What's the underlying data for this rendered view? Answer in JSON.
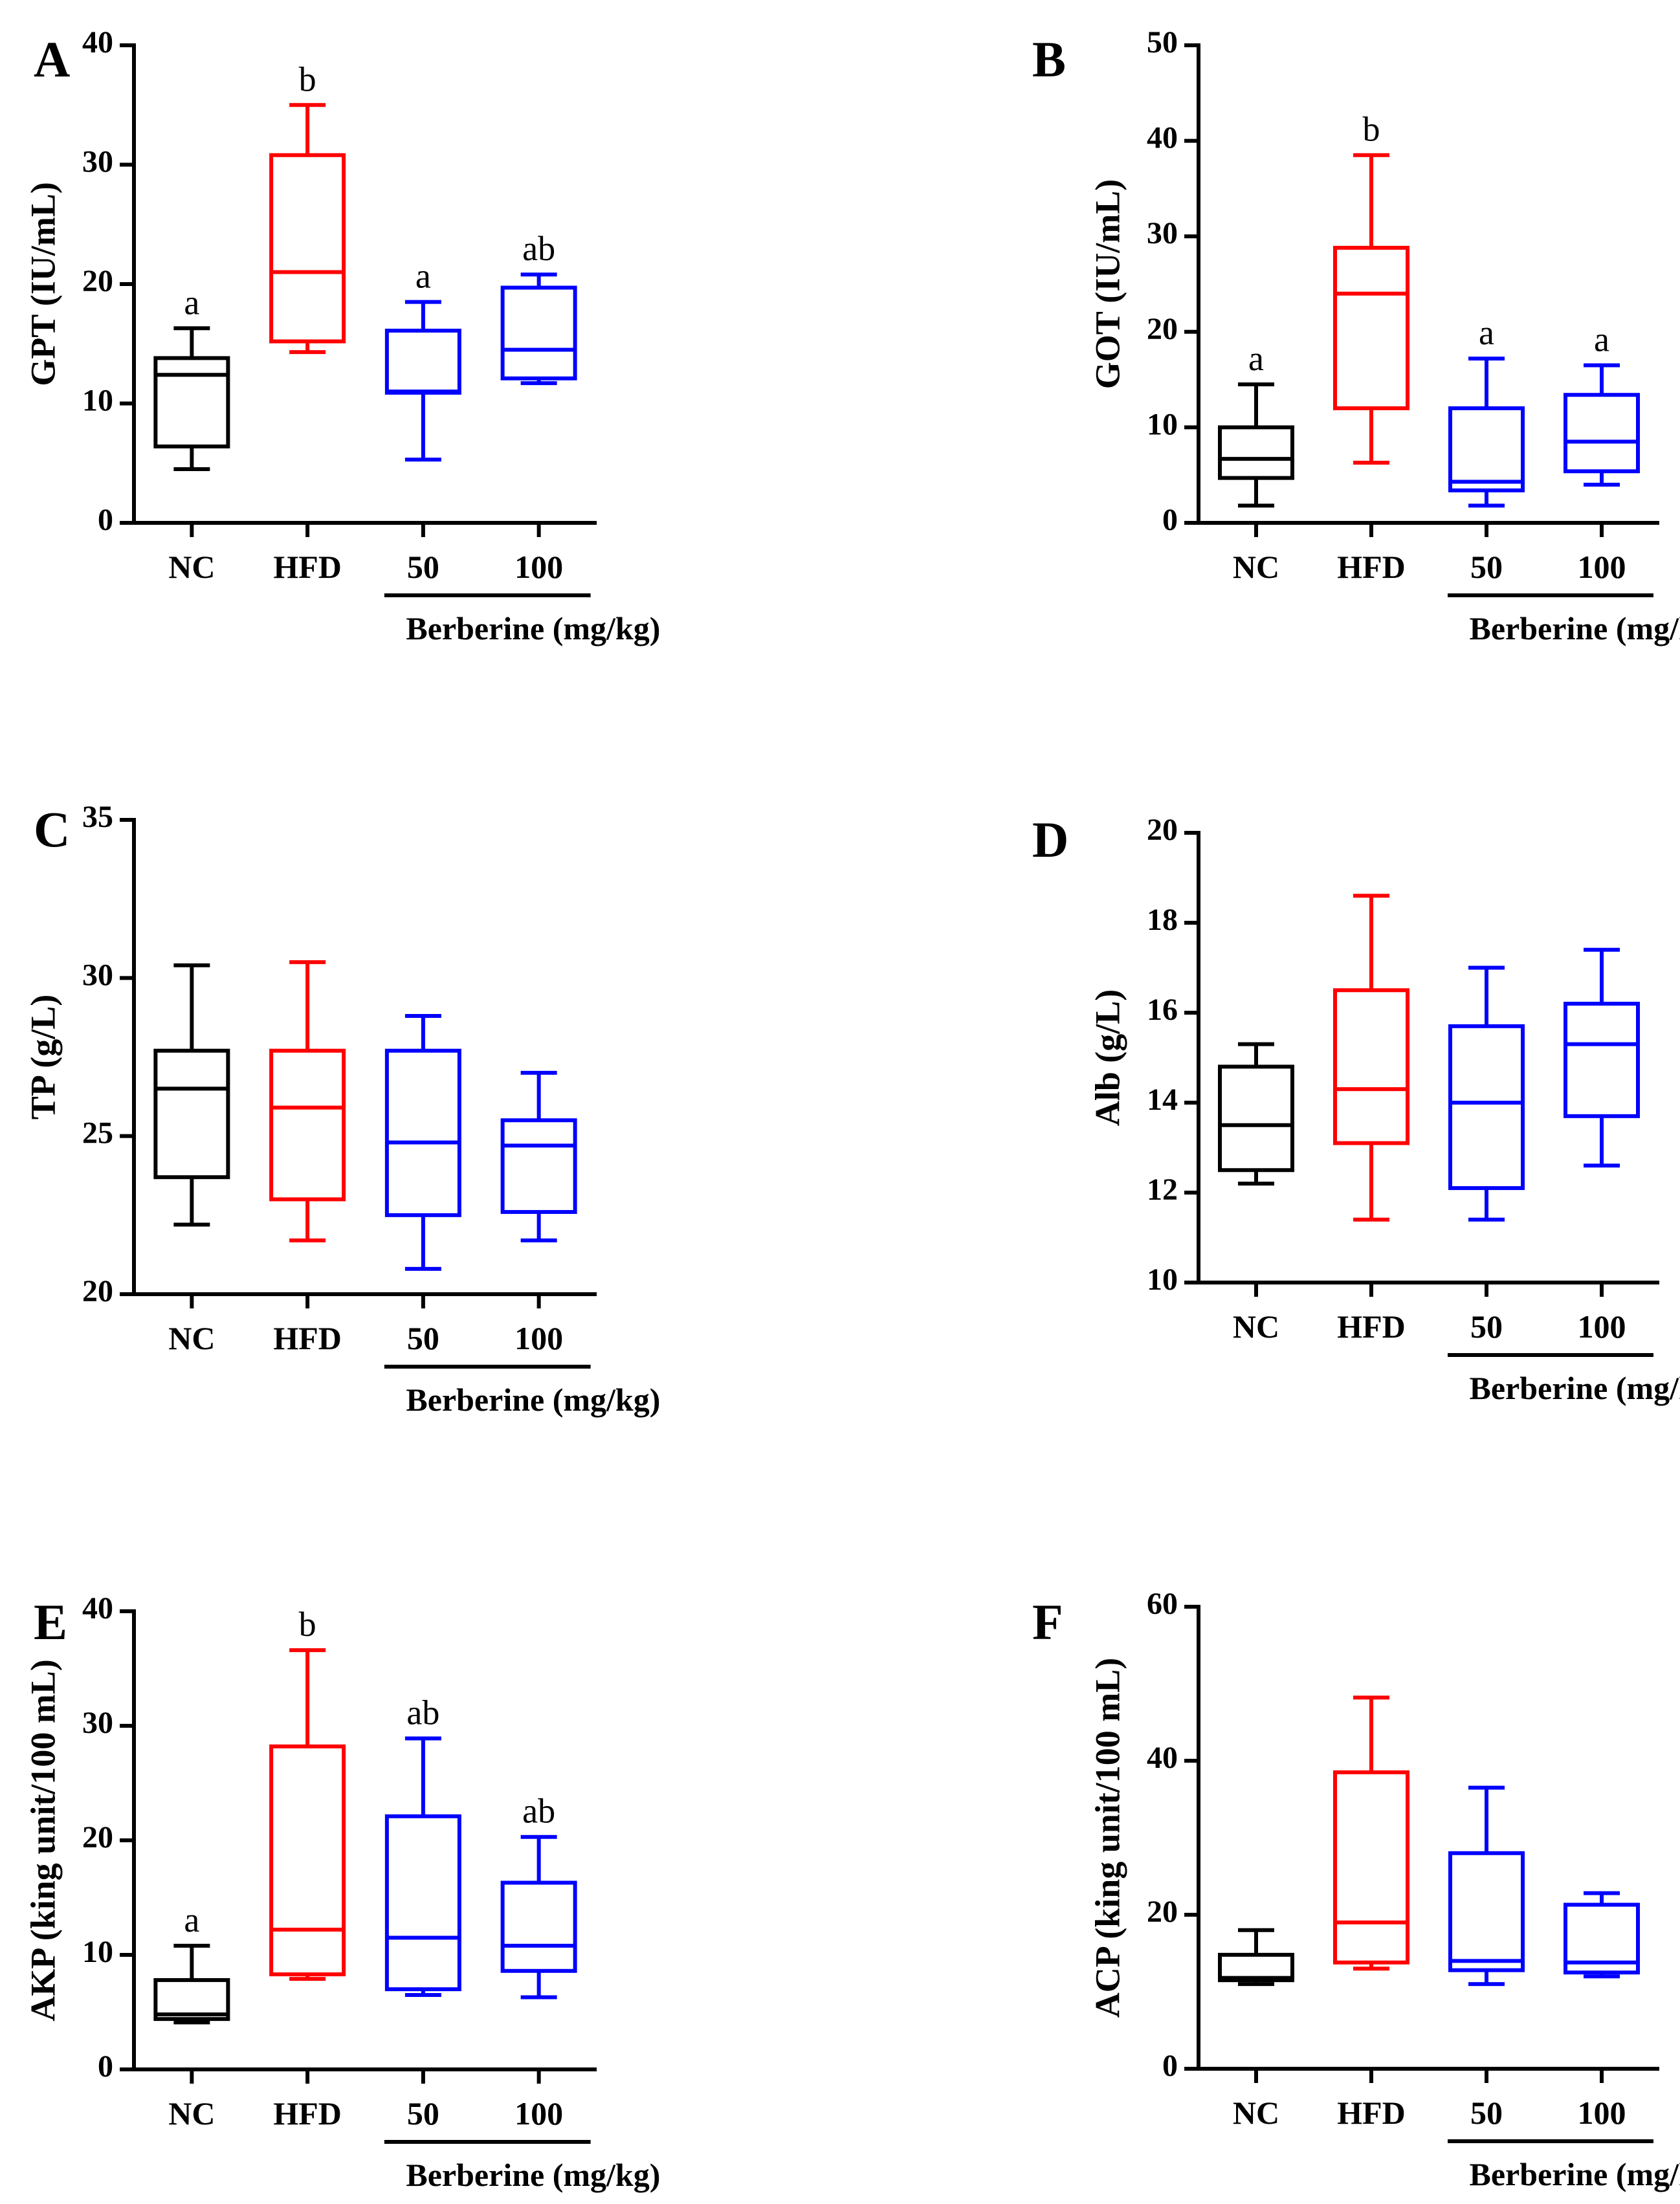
{
  "figure": {
    "group_label": "Berberine (mg/kg)",
    "colors": {
      "NC": "#000000",
      "HFD": "#ff0000",
      "treated": "#0000ff",
      "axis": "#000000"
    }
  },
  "chart_data": [
    {
      "type": "box",
      "panel": "A",
      "ylabel": "GPT (IU/mL)",
      "ylim": [
        0,
        40
      ],
      "yticks": [
        0,
        10,
        20,
        30,
        40
      ],
      "categories": [
        "NC",
        "HFD",
        "50",
        "100"
      ],
      "xgroup_label": "Berberine (mg/kg)",
      "boxes": [
        {
          "category": "NC",
          "min": 4.5,
          "q1": 6.4,
          "median": 12.4,
          "q3": 13.8,
          "max": 16.3,
          "letter": "a"
        },
        {
          "category": "HFD",
          "min": 14.3,
          "q1": 15.2,
          "median": 21.0,
          "q3": 30.8,
          "max": 35.0,
          "letter": "b"
        },
        {
          "category": "50",
          "min": 5.3,
          "q1": 10.9,
          "median": 11.0,
          "q3": 16.1,
          "max": 18.5,
          "letter": "a"
        },
        {
          "category": "100",
          "min": 11.7,
          "q1": 12.1,
          "median": 14.5,
          "q3": 19.7,
          "max": 20.8,
          "letter": "ab"
        }
      ]
    },
    {
      "type": "box",
      "panel": "B",
      "ylabel": "GOT (IU/mL)",
      "ylim": [
        0,
        50
      ],
      "yticks": [
        0,
        10,
        20,
        30,
        40,
        50
      ],
      "categories": [
        "NC",
        "HFD",
        "50",
        "100"
      ],
      "xgroup_label": "Berberine (mg/kg)",
      "boxes": [
        {
          "category": "NC",
          "min": 1.8,
          "q1": 4.7,
          "median": 6.7,
          "q3": 10.0,
          "max": 14.5,
          "letter": "a"
        },
        {
          "category": "HFD",
          "min": 6.3,
          "q1": 12.0,
          "median": 24.0,
          "q3": 28.8,
          "max": 38.5,
          "letter": "b"
        },
        {
          "category": "50",
          "min": 1.8,
          "q1": 3.4,
          "median": 4.3,
          "q3": 12.0,
          "max": 17.2,
          "letter": "a"
        },
        {
          "category": "100",
          "min": 4.0,
          "q1": 5.4,
          "median": 8.5,
          "q3": 13.4,
          "max": 16.5,
          "letter": "a"
        }
      ]
    },
    {
      "type": "box",
      "panel": "C",
      "ylabel": "TP (g/L)",
      "ylim": [
        20,
        35
      ],
      "yticks": [
        20,
        25,
        30,
        35
      ],
      "categories": [
        "NC",
        "HFD",
        "50",
        "100"
      ],
      "xgroup_label": "Berberine (mg/kg)",
      "boxes": [
        {
          "category": "NC",
          "min": 22.2,
          "q1": 23.7,
          "median": 26.5,
          "q3": 27.7,
          "max": 30.4,
          "letter": ""
        },
        {
          "category": "HFD",
          "min": 21.7,
          "q1": 23.0,
          "median": 25.9,
          "q3": 27.7,
          "max": 30.5,
          "letter": ""
        },
        {
          "category": "50",
          "min": 20.8,
          "q1": 22.5,
          "median": 24.8,
          "q3": 27.7,
          "max": 28.8,
          "letter": ""
        },
        {
          "category": "100",
          "min": 21.7,
          "q1": 22.6,
          "median": 24.7,
          "q3": 25.5,
          "max": 27.0,
          "letter": ""
        }
      ]
    },
    {
      "type": "box",
      "panel": "D",
      "ylabel": "Alb (g/L)",
      "ylim": [
        10,
        20
      ],
      "yticks": [
        10,
        12,
        14,
        16,
        18,
        20
      ],
      "categories": [
        "NC",
        "HFD",
        "50",
        "100"
      ],
      "xgroup_label": "Berberine (mg/kg)",
      "boxes": [
        {
          "category": "NC",
          "min": 12.2,
          "q1": 12.5,
          "median": 13.5,
          "q3": 14.8,
          "max": 15.3,
          "letter": ""
        },
        {
          "category": "HFD",
          "min": 11.4,
          "q1": 13.1,
          "median": 14.3,
          "q3": 16.5,
          "max": 18.6,
          "letter": ""
        },
        {
          "category": "50",
          "min": 11.4,
          "q1": 12.1,
          "median": 14.0,
          "q3": 15.7,
          "max": 17.0,
          "letter": ""
        },
        {
          "category": "100",
          "min": 12.6,
          "q1": 13.7,
          "median": 15.3,
          "q3": 16.2,
          "max": 17.4,
          "letter": ""
        }
      ]
    },
    {
      "type": "box",
      "panel": "E",
      "ylabel": "AKP (king unit/100 mL)",
      "ylim": [
        0,
        40
      ],
      "yticks": [
        0,
        10,
        20,
        30,
        40
      ],
      "categories": [
        "NC",
        "HFD",
        "50",
        "100"
      ],
      "xgroup_label": "Berberine (mg/kg)",
      "boxes": [
        {
          "category": "NC",
          "min": 4.1,
          "q1": 4.4,
          "median": 4.8,
          "q3": 7.8,
          "max": 10.8,
          "letter": "a"
        },
        {
          "category": "HFD",
          "min": 7.9,
          "q1": 8.3,
          "median": 12.2,
          "q3": 28.2,
          "max": 36.6,
          "letter": "b"
        },
        {
          "category": "50",
          "min": 6.5,
          "q1": 7.0,
          "median": 11.5,
          "q3": 22.1,
          "max": 28.9,
          "letter": "ab"
        },
        {
          "category": "100",
          "min": 6.3,
          "q1": 8.6,
          "median": 10.8,
          "q3": 16.3,
          "max": 20.3,
          "letter": "ab"
        }
      ]
    },
    {
      "type": "box",
      "panel": "F",
      "ylabel": "ACP (king unit/100 mL)",
      "ylim": [
        0,
        60
      ],
      "yticks": [
        0,
        20,
        40,
        60
      ],
      "categories": [
        "NC",
        "HFD",
        "50",
        "100"
      ],
      "xgroup_label": "Berberine (mg/kg)",
      "boxes": [
        {
          "category": "NC",
          "min": 11.0,
          "q1": 11.5,
          "median": 11.8,
          "q3": 14.8,
          "max": 18.0,
          "letter": ""
        },
        {
          "category": "HFD",
          "min": 13.0,
          "q1": 13.8,
          "median": 19.0,
          "q3": 38.5,
          "max": 48.2,
          "letter": ""
        },
        {
          "category": "50",
          "min": 11.0,
          "q1": 12.8,
          "median": 14.0,
          "q3": 28.0,
          "max": 36.5,
          "letter": ""
        },
        {
          "category": "100",
          "min": 12.0,
          "q1": 12.5,
          "median": 13.8,
          "q3": 21.3,
          "max": 22.8,
          "letter": ""
        }
      ]
    }
  ]
}
